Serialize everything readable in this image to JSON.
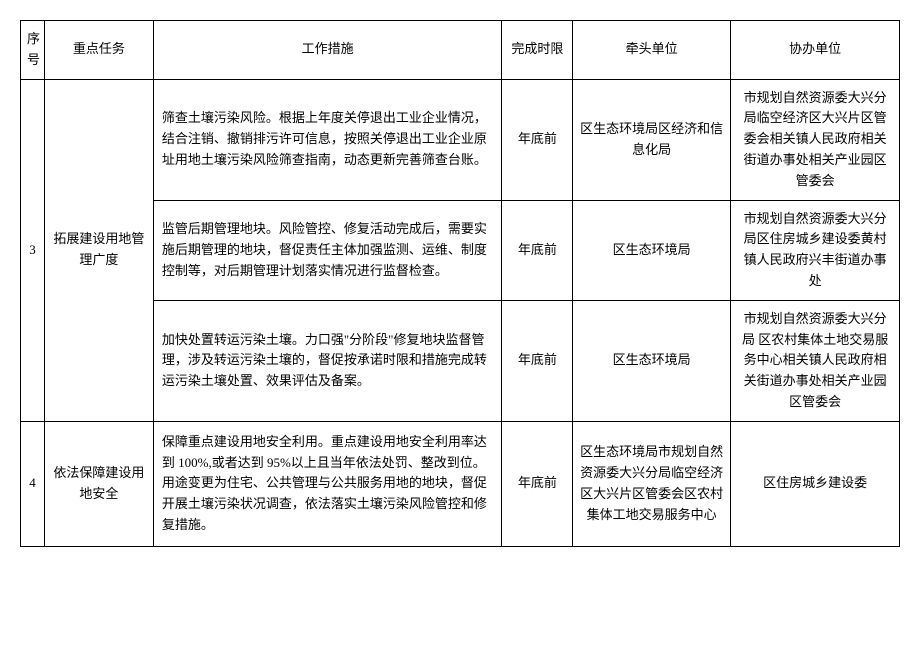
{
  "headers": {
    "seq": "序号",
    "task": "重点任务",
    "measure": "工作措施",
    "deadline": "完成时限",
    "lead": "牵头单位",
    "assist": "协办单位"
  },
  "rows": [
    {
      "seq": "3",
      "task": "拓展建设用地管理广度",
      "subrows": [
        {
          "measure": "筛查土壤污染风险。根据上年度关停退出工业企业情况，结合注销、撤销排污许可信息，按照关停退出工业企业原址用地土壤污染风险筛查指南，动态更新完善筛查台账。",
          "deadline": "年底前",
          "lead": "区生态环境局区经济和信息化局",
          "assist": "市规划自然资源委大兴分局临空经济区大兴片区管委会相关镇人民政府相关街道办事处相关产业园区管委会"
        },
        {
          "measure": "监管后期管理地块。风险管控、修复活动完成后，需要实施后期管理的地块，督促责任主体加强监测、运维、制度控制等，对后期管理计划落实情况进行监督检查。",
          "deadline": "年底前",
          "lead": "区生态环境局",
          "assist": "市规划自然资源委大兴分局区住房城乡建设委黄村镇人民政府兴丰街道办事处"
        },
        {
          "measure": "加快处置转运污染土壤。力口强\"分阶段\"修复地块监督管理，涉及转运污染土壤的，督促按承诺时限和措施完成转运污染土壤处置、效果评估及备案。",
          "deadline": "年底前",
          "lead": "区生态环境局",
          "assist": "市规划自然资源委大兴分局\n区农村集体土地交易服务中心相关镇人民政府相关街道办事处相关产业园区管委会"
        }
      ]
    },
    {
      "seq": "4",
      "task": "依法保障建设用地安全",
      "subrows": [
        {
          "measure": "保障重点建设用地安全利用。重点建设用地安全利用率达到 100%,或者达到 95%以上且当年依法处罚、整改到位。用途变更为住宅、公共管理与公共服务用地的地块，督促开展土壤污染状况调查，依法落实土壤污染风险管控和修复措施。",
          "deadline": "年底前",
          "lead": "区生态环境局市规划自然资源委大兴分局临空经济区大兴片区管委会区农村集体工地交易服务中心",
          "assist": "区住房城乡建设委"
        }
      ]
    }
  ]
}
